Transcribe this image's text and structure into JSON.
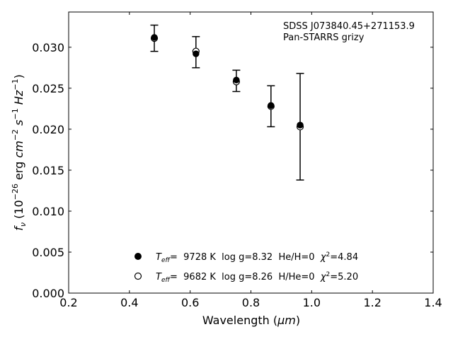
{
  "chart_data": {
    "type": "scatter",
    "title": "",
    "xlabel_main": "Wavelength (",
    "xlabel_unit": "μm",
    "xlabel_close": ")",
    "ylabel": "fν (10⁻²⁶ erg cm⁻² s⁻¹ Hz⁻¹)",
    "xlim": [
      0.2,
      1.4
    ],
    "ylim": [
      0.0,
      0.0343
    ],
    "xticks": [
      "0.2",
      "0.4",
      "0.6",
      "0.8",
      "1.0",
      "1.2",
      "1.4"
    ],
    "xtick_values": [
      0.2,
      0.4,
      0.6,
      0.8,
      1.0,
      1.2,
      1.4
    ],
    "yticks": [
      "0.000",
      "0.005",
      "0.010",
      "0.015",
      "0.020",
      "0.025",
      "0.030"
    ],
    "ytick_values": [
      0.0,
      0.005,
      0.01,
      0.015,
      0.02,
      0.025,
      0.03
    ],
    "grid": false,
    "annotation": [
      "SDSS J073840.45+271153.9",
      "Pan-STARRS grizy"
    ],
    "observed": {
      "x": [
        0.482,
        0.619,
        0.752,
        0.866,
        0.962
      ],
      "y": [
        0.0311,
        0.0294,
        0.0259,
        0.0228,
        0.0203
      ],
      "yerr": [
        0.0016,
        0.0019,
        0.0013,
        0.0025,
        0.0065
      ]
    },
    "series": [
      {
        "marker": "filled-circle",
        "name": "Teff= 9728 K log g=8.32 He/H=0 χ2=4.84",
        "label_parts": {
          "t": "T",
          "eff": "eff",
          "rest": "=  9728 K  log g=8.32  He/H=0  ",
          "chi": "χ",
          "sup": "2",
          "val": "=4.84"
        },
        "x": [
          0.482,
          0.619,
          0.752,
          0.866,
          0.962
        ],
        "y": [
          0.0312,
          0.0292,
          0.026,
          0.0229,
          0.0205
        ]
      },
      {
        "marker": "open-circle",
        "name": "Teff= 9682 K log g=8.26 H/He=0 χ2=5.20",
        "label_parts": {
          "t": "T",
          "eff": "eff",
          "rest": "=  9682 K  log g=8.26  H/He=0  ",
          "chi": "χ",
          "sup": "2",
          "val": "=5.20"
        },
        "x": [
          0.482,
          0.619,
          0.752,
          0.866,
          0.962
        ],
        "y": [
          0.0311,
          0.0295,
          0.0258,
          0.0228,
          0.0203
        ]
      }
    ]
  }
}
